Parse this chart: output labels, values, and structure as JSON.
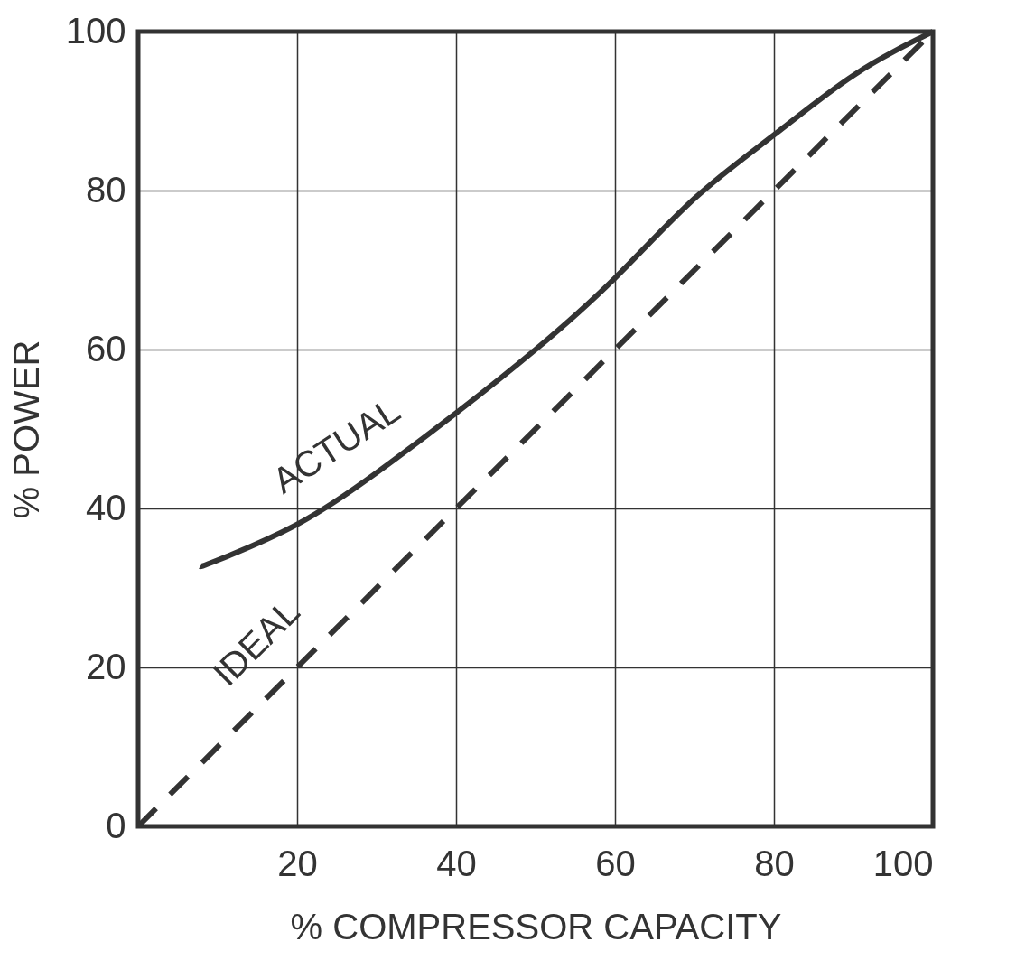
{
  "chart_data": {
    "type": "line",
    "xlabel": "% COMPRESSOR CAPACITY",
    "ylabel": "% POWER",
    "xlim": [
      0,
      100
    ],
    "ylim": [
      0,
      100
    ],
    "xticks": [
      20,
      40,
      60,
      80,
      100
    ],
    "yticks": [
      0,
      20,
      40,
      60,
      80,
      100
    ],
    "grid": true,
    "marker": "none",
    "series": [
      {
        "name": "ACTUAL",
        "color": "#333333",
        "line_style": "solid",
        "x": [
          7.8,
          10,
          20,
          30,
          40,
          50,
          60,
          70,
          80,
          90,
          100
        ],
        "values": [
          32.7,
          33.5,
          38,
          44.5,
          52,
          60,
          69,
          79,
          87,
          94.5,
          100
        ]
      },
      {
        "name": "IDEAL",
        "color": "#333333",
        "line_style": "dashed",
        "x": [
          0,
          100
        ],
        "values": [
          0,
          100
        ]
      }
    ]
  }
}
